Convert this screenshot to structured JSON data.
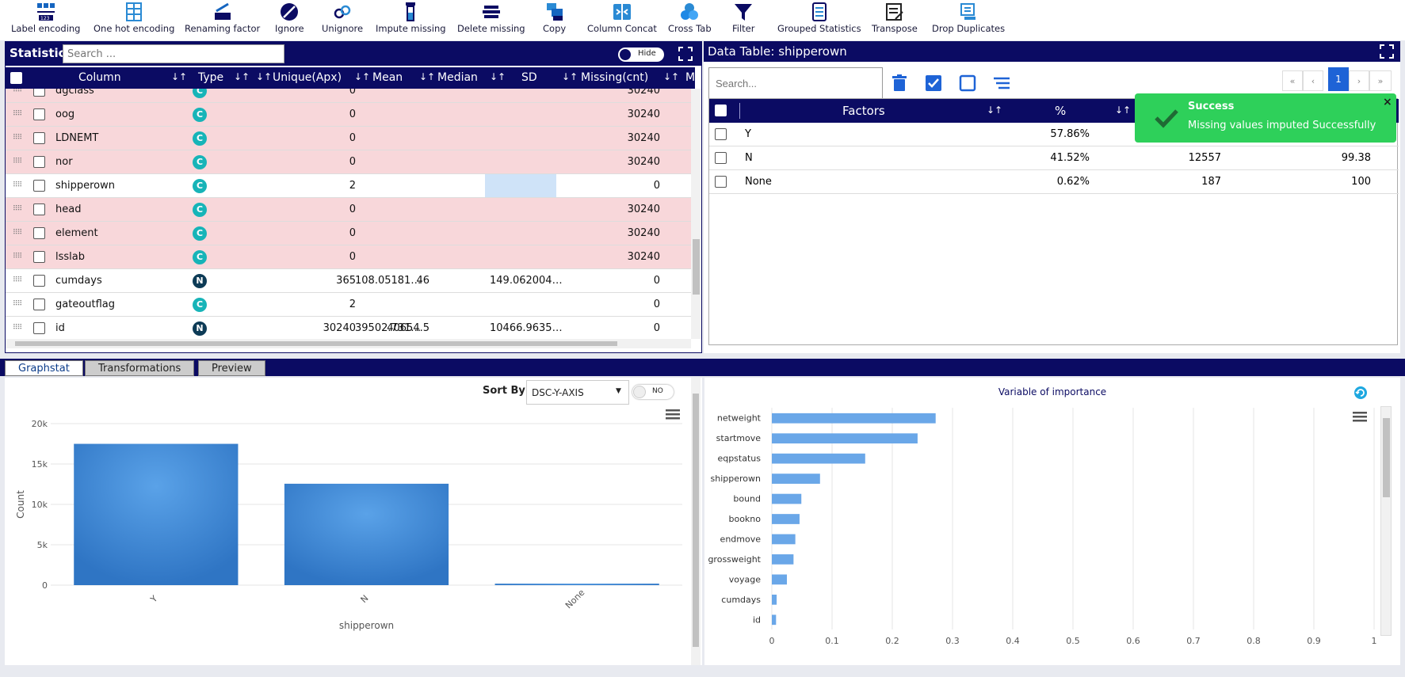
{
  "toolbar": {
    "items": [
      {
        "label": "Label encoding"
      },
      {
        "label": "One hot encoding"
      },
      {
        "label": "Renaming factor"
      },
      {
        "label": "Ignore"
      },
      {
        "label": "Unignore"
      },
      {
        "label": "Impute missing"
      },
      {
        "label": "Delete missing"
      },
      {
        "label": "Copy"
      },
      {
        "label": "Column Concat"
      },
      {
        "label": "Cross Tab"
      },
      {
        "label": "Filter"
      },
      {
        "label": "Grouped Statistics"
      },
      {
        "label": "Transpose"
      },
      {
        "label": "Drop Duplicates"
      }
    ]
  },
  "stats": {
    "title": "Statistics",
    "search_placeholder": "Search ...",
    "hide_label": "Hide",
    "columns": [
      "Column",
      "Type",
      "Unique(Apx)",
      "Mean",
      "Median",
      "SD",
      "Missing(cnt)",
      "Mi"
    ],
    "rows": [
      {
        "name": "dgclass",
        "type": "C",
        "unique": "0",
        "mean": "",
        "median": "",
        "sd": "",
        "missing": "30240",
        "flag": true
      },
      {
        "name": "oog",
        "type": "C",
        "unique": "0",
        "mean": "",
        "median": "",
        "sd": "",
        "missing": "30240",
        "flag": true
      },
      {
        "name": "LDNEMT",
        "type": "C",
        "unique": "0",
        "mean": "",
        "median": "",
        "sd": "",
        "missing": "30240",
        "flag": true
      },
      {
        "name": "nor",
        "type": "C",
        "unique": "0",
        "mean": "",
        "median": "",
        "sd": "",
        "missing": "30240",
        "flag": true
      },
      {
        "name": "shipperown",
        "type": "C",
        "unique": "2",
        "mean": "",
        "median": "",
        "sd": "",
        "missing": "0",
        "flag": false
      },
      {
        "name": "head",
        "type": "C",
        "unique": "0",
        "mean": "",
        "median": "",
        "sd": "",
        "missing": "30240",
        "flag": true
      },
      {
        "name": "element",
        "type": "C",
        "unique": "0",
        "mean": "",
        "median": "",
        "sd": "",
        "missing": "30240",
        "flag": true
      },
      {
        "name": "lsslab",
        "type": "C",
        "unique": "0",
        "mean": "",
        "median": "",
        "sd": "",
        "missing": "30240",
        "flag": true
      },
      {
        "name": "cumdays",
        "type": "N",
        "unique": "365",
        "mean": "108.05181…",
        "median": "46",
        "sd": "149.062004…",
        "missing": "0",
        "flag": false
      },
      {
        "name": "gateoutflag",
        "type": "C",
        "unique": "2",
        "mean": "",
        "median": "",
        "sd": "",
        "missing": "0",
        "flag": false
      },
      {
        "name": "id",
        "type": "N",
        "unique": "30240",
        "mean": "39502.731…",
        "median": "40654.5",
        "sd": "10466.9635…",
        "missing": "0",
        "flag": false
      }
    ]
  },
  "datatable": {
    "title": "Data Table: shipperown",
    "search_placeholder": "Search...",
    "page": "1",
    "pager": {
      "first": "«",
      "prev": "‹",
      "next": "›",
      "last": "»"
    },
    "columns": [
      "Factors",
      "%"
    ],
    "rows": [
      {
        "factor": "Y",
        "pct": "57.86%",
        "count": "",
        "cum": ""
      },
      {
        "factor": "N",
        "pct": "41.52%",
        "count": "12557",
        "cum": "99.38"
      },
      {
        "factor": "None",
        "pct": "0.62%",
        "count": "187",
        "cum": "100"
      }
    ]
  },
  "toast": {
    "title": "Success",
    "message": "Missing values imputed Successfully",
    "close": "×"
  },
  "tabs": [
    {
      "label": "Graphstat",
      "active": true
    },
    {
      "label": "Transformations",
      "active": false
    },
    {
      "label": "Preview",
      "active": false
    }
  ],
  "graphstat": {
    "sort_label": "Sort By:",
    "sort_value": "DSC-Y-AXIS",
    "toggle_label": "NO"
  },
  "chart_data": [
    {
      "type": "bar",
      "categories": [
        "Y",
        "N",
        "None"
      ],
      "values": [
        17496,
        12557,
        187
      ],
      "xlabel": "shipperown",
      "ylabel": "Count",
      "ylim": [
        0,
        20000
      ],
      "yticks": [
        "0",
        "5k",
        "10k",
        "15k",
        "20k"
      ],
      "color": "#2f75c4",
      "grid": true
    },
    {
      "type": "bar",
      "orientation": "horizontal",
      "title": "Variable of importance",
      "categories": [
        "netweight",
        "startmove",
        "eqpstatus",
        "shipperown",
        "bound",
        "bookno",
        "endmove",
        "grossweight",
        "voyage",
        "cumdays",
        "id"
      ],
      "values": [
        0.272,
        0.242,
        0.155,
        0.08,
        0.049,
        0.046,
        0.039,
        0.036,
        0.025,
        0.008,
        0.007
      ],
      "xlim": [
        0,
        1
      ],
      "xticks": [
        "0",
        "0.1",
        "0.2",
        "0.3",
        "0.4",
        "0.5",
        "0.6",
        "0.7",
        "0.8",
        "0.9",
        "1"
      ],
      "color": "#6aa7e8",
      "grid": true
    }
  ]
}
